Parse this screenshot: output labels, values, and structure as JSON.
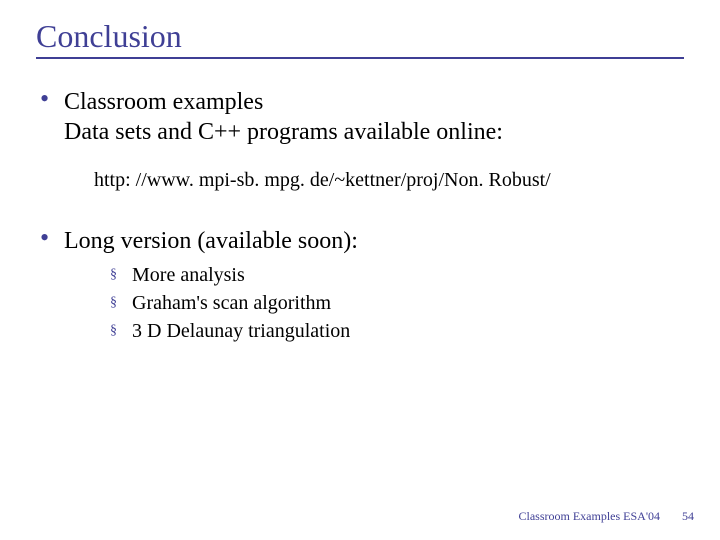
{
  "colors": {
    "accent": "#3f3f95",
    "text": "#000000",
    "background": "#ffffff"
  },
  "title": "Conclusion",
  "bullets": [
    {
      "lines": [
        "Classroom examples",
        "Data sets and C++ programs available online:"
      ],
      "url": "http: //www. mpi-sb. mpg. de/~kettner/proj/Non. Robust/"
    },
    {
      "lines": [
        "Long version (available soon):"
      ],
      "sub": [
        "More analysis",
        "Graham's scan algorithm",
        "3 D Delaunay triangulation"
      ]
    }
  ],
  "footer": {
    "label": "Classroom Examples   ESA'04",
    "page": "54"
  }
}
